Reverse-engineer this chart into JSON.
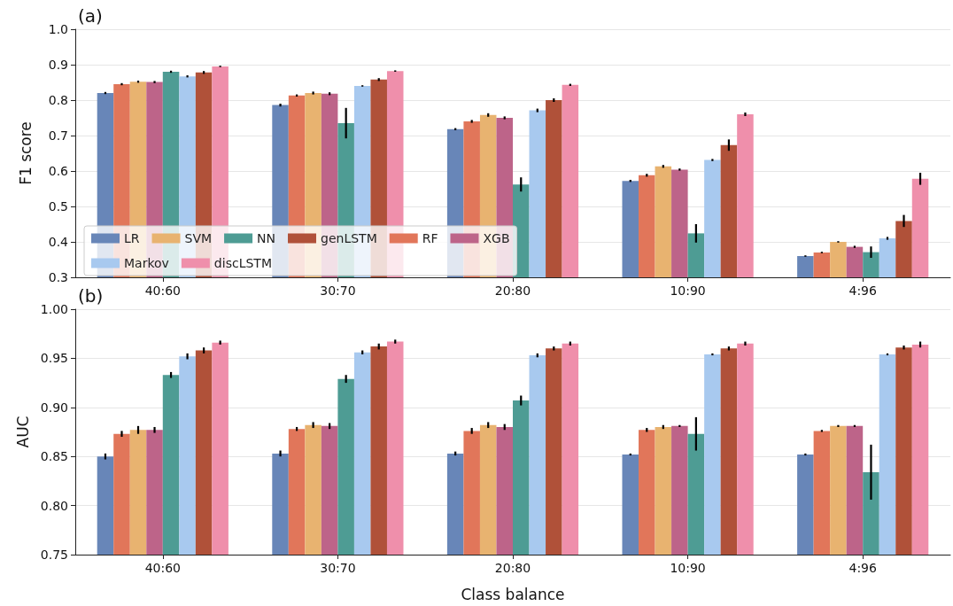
{
  "chart_data": [
    {
      "type": "bar",
      "title": "(a)",
      "ylabel": "F1 score",
      "categories": [
        "40:60",
        "30:70",
        "20:80",
        "10:90",
        "4:96"
      ],
      "ylim": [
        0.3,
        1.0
      ],
      "yticks": [
        0.3,
        0.4,
        0.5,
        0.6,
        0.7,
        0.8,
        0.9,
        {
          "value": 1.0,
          "label": "1.0"
        }
      ],
      "grid": "y",
      "legend": "bottom left",
      "series": [
        {
          "name": "LR",
          "color": "#6886b8",
          "values": [
            0.82,
            0.786,
            0.718,
            0.572,
            0.36
          ],
          "errors": [
            0.003,
            0.004,
            0.003,
            0.003,
            0.002
          ]
        },
        {
          "name": "RF",
          "color": "#e1765a",
          "values": [
            0.845,
            0.813,
            0.74,
            0.588,
            0.37
          ],
          "errors": [
            0.003,
            0.003,
            0.004,
            0.004,
            0.002
          ]
        },
        {
          "name": "SVM",
          "color": "#e8b370",
          "values": [
            0.852,
            0.82,
            0.758,
            0.613,
            0.4
          ],
          "errors": [
            0.003,
            0.004,
            0.005,
            0.004,
            0.002
          ]
        },
        {
          "name": "XGB",
          "color": "#bd6489",
          "values": [
            0.851,
            0.818,
            0.75,
            0.604,
            0.386
          ],
          "errors": [
            0.003,
            0.004,
            0.004,
            0.003,
            0.003
          ]
        },
        {
          "name": "NN",
          "color": "#4e9c94",
          "values": [
            0.88,
            0.735,
            0.562,
            0.424,
            0.371
          ],
          "errors": [
            0.003,
            0.043,
            0.02,
            0.026,
            0.016
          ]
        },
        {
          "name": "Markov",
          "color": "#a8c9ef",
          "values": [
            0.867,
            0.84,
            0.771,
            0.631,
            0.41
          ],
          "errors": [
            0.003,
            0.002,
            0.005,
            0.003,
            0.004
          ]
        },
        {
          "name": "genLSTM",
          "color": "#b05139",
          "values": [
            0.878,
            0.858,
            0.8,
            0.673,
            0.459
          ],
          "errors": [
            0.004,
            0.004,
            0.005,
            0.016,
            0.017
          ]
        },
        {
          "name": "discLSTM",
          "color": "#ef8fab",
          "values": [
            0.895,
            0.882,
            0.843,
            0.76,
            0.578
          ],
          "errors": [
            0.002,
            0.002,
            0.003,
            0.005,
            0.017
          ]
        }
      ]
    },
    {
      "type": "bar",
      "title": "(b)",
      "xlabel": "Class balance",
      "ylabel": "AUC",
      "categories": [
        "40:60",
        "30:70",
        "20:80",
        "10:90",
        "4:96"
      ],
      "ylim": [
        0.75,
        1.0
      ],
      "yticks": [
        {
          "value": 0.75,
          "label": "0.75"
        },
        {
          "value": 0.8,
          "label": "0.80"
        },
        {
          "value": 0.85,
          "label": "0.85"
        },
        {
          "value": 0.9,
          "label": "0.90"
        },
        {
          "value": 0.95,
          "label": "0.95"
        },
        {
          "value": 1.0,
          "label": "1.00"
        }
      ],
      "grid": "y",
      "legend": false,
      "series": [
        {
          "color": "#6886b8",
          "values": [
            0.85,
            0.853,
            0.853,
            0.852,
            0.852
          ],
          "errors": [
            0.003,
            0.003,
            0.002,
            0.001,
            0.001
          ]
        },
        {
          "color": "#e1765a",
          "values": [
            0.873,
            0.878,
            0.876,
            0.877,
            0.876
          ],
          "errors": [
            0.003,
            0.002,
            0.003,
            0.002,
            0.001
          ]
        },
        {
          "color": "#e8b370",
          "values": [
            0.877,
            0.882,
            0.882,
            0.88,
            0.881
          ],
          "errors": [
            0.004,
            0.003,
            0.003,
            0.002,
            0.001
          ]
        },
        {
          "color": "#bd6489",
          "values": [
            0.877,
            0.881,
            0.88,
            0.881,
            0.881
          ],
          "errors": [
            0.003,
            0.003,
            0.003,
            0.001,
            0.001
          ]
        },
        {
          "color": "#4e9c94",
          "values": [
            0.933,
            0.929,
            0.907,
            0.873,
            0.834
          ],
          "errors": [
            0.003,
            0.004,
            0.005,
            0.017,
            0.028
          ]
        },
        {
          "color": "#a8c9ef",
          "values": [
            0.952,
            0.956,
            0.953,
            0.954,
            0.954
          ],
          "errors": [
            0.003,
            0.002,
            0.002,
            0.001,
            0.001
          ]
        },
        {
          "color": "#b05139",
          "values": [
            0.958,
            0.962,
            0.96,
            0.96,
            0.961
          ],
          "errors": [
            0.003,
            0.003,
            0.002,
            0.002,
            0.002
          ]
        },
        {
          "color": "#ef8fab",
          "values": [
            0.966,
            0.967,
            0.965,
            0.965,
            0.964
          ],
          "errors": [
            0.002,
            0.002,
            0.002,
            0.002,
            0.003
          ]
        }
      ]
    }
  ]
}
